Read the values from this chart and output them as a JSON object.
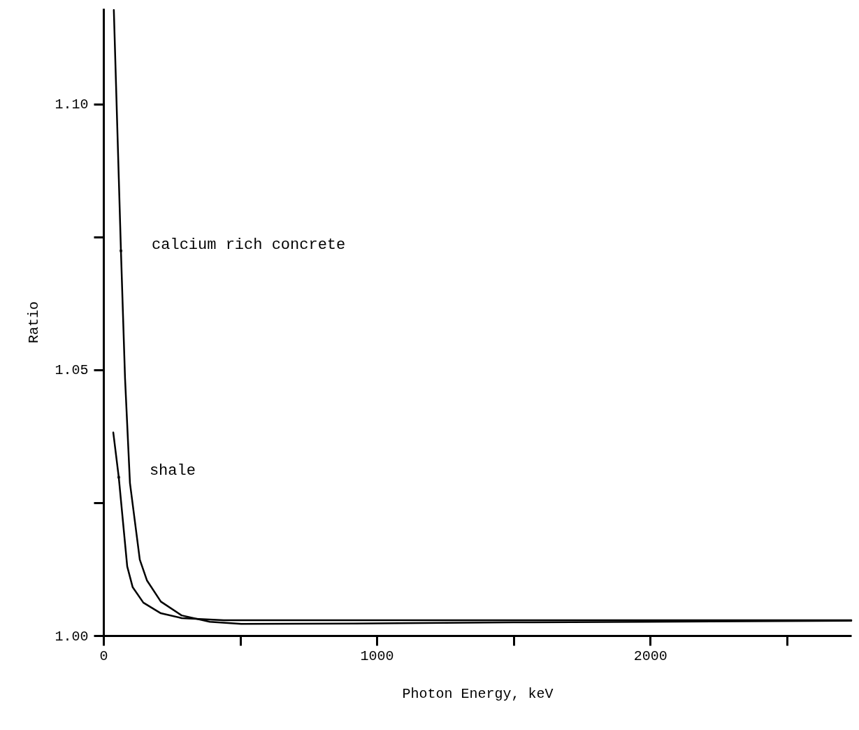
{
  "chart_data": {
    "type": "line",
    "xlabel": "Photon Energy, keV",
    "ylabel": "Ratio",
    "x": [
      38,
      64,
      79,
      97,
      133,
      159,
      210,
      286,
      389,
      504,
      1000,
      1500,
      2000,
      2736
    ],
    "series": [
      {
        "color": "#000000",
        "values": [
          1.1177,
          1.0724,
          1.0484,
          1.0287,
          1.0143,
          1.0104,
          1.0064,
          1.0038,
          1.0026,
          1.0022,
          1.0023,
          1.0025,
          1.0026,
          1.0028
        ]
      },
      {
        "color": "#000000",
        "x": [
          36,
          56,
          87,
          107,
          146,
          210,
          286,
          440,
          1000,
          2000,
          2736
        ],
        "values": [
          1.0382,
          1.0298,
          1.013,
          1.0091,
          1.0062,
          1.0042,
          1.0033,
          1.0029,
          1.0029,
          1.0029,
          1.0029
        ]
      }
    ],
    "annotations": [
      {
        "text": "calcium rich concrete",
        "x": 64,
        "y": 1.0724
      },
      {
        "text": "shale",
        "x": 56,
        "y": 1.0298
      }
    ],
    "xlim": [
      0,
      2736
    ],
    "xticks": [
      0,
      {
        "value": 500,
        "label": null
      },
      1000,
      {
        "value": 1500,
        "label": null
      },
      2000,
      {
        "value": 2500,
        "label": null
      }
    ],
    "ylim": [
      1,
      1.118
    ],
    "yticks": [
      {
        "value": 1,
        "label": "1.00"
      },
      {
        "value": 1.025,
        "label": null
      },
      {
        "value": 1.05,
        "label": "1.05"
      },
      {
        "value": 1.075,
        "label": null
      },
      {
        "value": 1.1,
        "label": "1.10"
      }
    ],
    "grid": false,
    "marker": "none",
    "line_style": "solid"
  }
}
